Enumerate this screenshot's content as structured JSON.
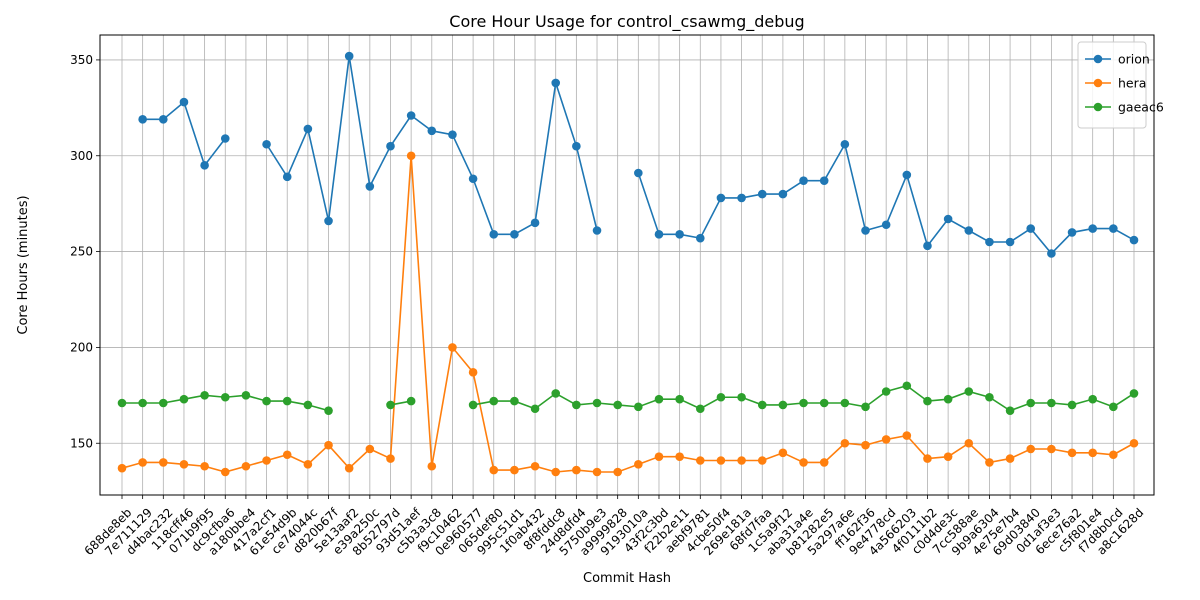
{
  "chart_data": {
    "type": "line",
    "title": "Core Hour Usage for control_csawmg_debug",
    "xlabel": "Commit Hash",
    "ylabel": "Core Hours (minutes)",
    "ylim": [
      123,
      363
    ],
    "yticks": [
      150,
      200,
      250,
      300,
      350
    ],
    "grid": true,
    "legend_position": "top-right",
    "categories": [
      "688de8eb",
      "7e711129",
      "d4bac232",
      "118cff46",
      "071b9f95",
      "dc9cfba6",
      "a180bbe4",
      "417a2cf1",
      "61e54d9b",
      "ce74044c",
      "d820b67f",
      "5e13aaf2",
      "e39a250c",
      "8b52797d",
      "93d51aef",
      "c5b3a3c8",
      "f9c10462",
      "0e960577",
      "065def80",
      "995c51d1",
      "1f0ab432",
      "8f8fddc8",
      "24d8dfd4",
      "5750b9e3",
      "a9999828",
      "9193010a",
      "43f2c3bd",
      "f22b2e11",
      "aebf9781",
      "4cbe50f4",
      "269e181a",
      "68fd7faa",
      "1c5a9f12",
      "aba31a4e",
      "b81282e5",
      "5a297a6e",
      "ff162f36",
      "9e4778cd",
      "4a566203",
      "4f0111b2",
      "c0d4de3c",
      "7cc588ae",
      "9b9a6304",
      "4e75e7b4",
      "69d03840",
      "0d1af3e3",
      "6ece76a2",
      "c5f801e4",
      "f7d8b0cd",
      "a8c1628d"
    ],
    "series": [
      {
        "name": "orion",
        "color": "#1f77b4",
        "values": [
          null,
          319,
          319,
          328,
          295,
          309,
          null,
          306,
          289,
          314,
          266,
          352,
          284,
          305,
          321,
          313,
          311,
          288,
          259,
          259,
          265,
          338,
          305,
          261,
          null,
          291,
          259,
          259,
          257,
          278,
          278,
          280,
          280,
          287,
          287,
          306,
          261,
          264,
          290,
          253,
          267,
          261,
          255,
          255,
          262,
          249,
          260,
          262,
          262,
          256
        ]
      },
      {
        "name": "hera",
        "color": "#ff7f0e",
        "values": [
          137,
          140,
          140,
          139,
          138,
          135,
          138,
          141,
          144,
          139,
          149,
          137,
          147,
          142,
          300,
          138,
          200,
          187,
          136,
          136,
          138,
          135,
          136,
          135,
          135,
          139,
          143,
          143,
          141,
          141,
          141,
          141,
          145,
          140,
          140,
          150,
          149,
          152,
          154,
          142,
          143,
          150,
          140,
          142,
          147,
          147,
          145,
          145,
          144,
          150
        ]
      },
      {
        "name": "gaeac6",
        "color": "#2ca02c",
        "values": [
          171,
          171,
          171,
          173,
          175,
          174,
          175,
          172,
          172,
          170,
          167,
          null,
          null,
          170,
          172,
          null,
          null,
          170,
          172,
          172,
          168,
          176,
          170,
          171,
          170,
          169,
          173,
          173,
          168,
          174,
          174,
          170,
          170,
          171,
          171,
          171,
          169,
          177,
          180,
          172,
          173,
          177,
          174,
          167,
          171,
          171,
          170,
          173,
          169,
          176
        ]
      }
    ]
  }
}
